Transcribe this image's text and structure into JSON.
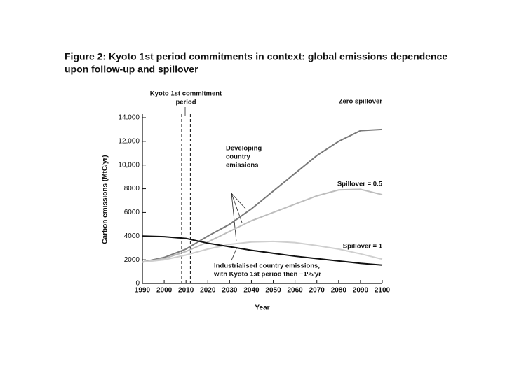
{
  "chart_data": {
    "type": "line",
    "title_lines": [
      "Figure 2: Kyoto 1st period commitments in context: global emissions dependence",
      "upon follow-up and spillover"
    ],
    "y_label": "Carbon emissions (MtC/yr)",
    "x_label": "Year",
    "x": [
      1990,
      2000,
      2010,
      2020,
      2030,
      2040,
      2050,
      2060,
      2070,
      2080,
      2090,
      2100
    ],
    "xlim": [
      1990,
      2100
    ],
    "xticks": [
      1990,
      2000,
      2010,
      2020,
      2030,
      2040,
      2050,
      2060,
      2070,
      2080,
      2090,
      2100
    ],
    "ylim": [
      0,
      14000
    ],
    "yticks": [
      0,
      2000,
      4000,
      6000,
      8000,
      {
        "value": 10000,
        "label": "10,000"
      },
      {
        "value": 12000,
        "label": "12,000"
      },
      {
        "value": 14000,
        "label": "14,000"
      }
    ],
    "kyoto_period": [
      2008,
      2012
    ],
    "series": [
      {
        "name": "Zero spillover",
        "color": "#7a7a7a",
        "values": [
          1800,
          2200,
          2900,
          4000,
          5000,
          6300,
          7800,
          9300,
          10800,
          12000,
          12900,
          13000
        ]
      },
      {
        "name": "Spillover = 0.5",
        "color": "#bdbdbd",
        "values": [
          1800,
          2100,
          2700,
          3500,
          4400,
          5300,
          6000,
          6700,
          7400,
          7900,
          7950,
          7500
        ]
      },
      {
        "name": "Spillover = 1",
        "color": "#cfcfcf",
        "values": [
          1800,
          2000,
          2400,
          2900,
          3300,
          3500,
          3550,
          3450,
          3200,
          2900,
          2500,
          2050
        ]
      },
      {
        "color": "#111111",
        "values": [
          4000,
          3950,
          3800,
          3400,
          3100,
          2800,
          2550,
          2300,
          2100,
          1900,
          1700,
          1550
        ]
      }
    ],
    "annotations": [
      {
        "lines": [
          "Kyoto 1st commitment",
          "period"
        ]
      },
      {
        "lines": [
          "Developing",
          "country",
          "emissions"
        ]
      },
      {
        "lines": [
          "Industrialised country emissions,",
          "with Kyoto 1st period then −1%/yr"
        ]
      }
    ]
  }
}
